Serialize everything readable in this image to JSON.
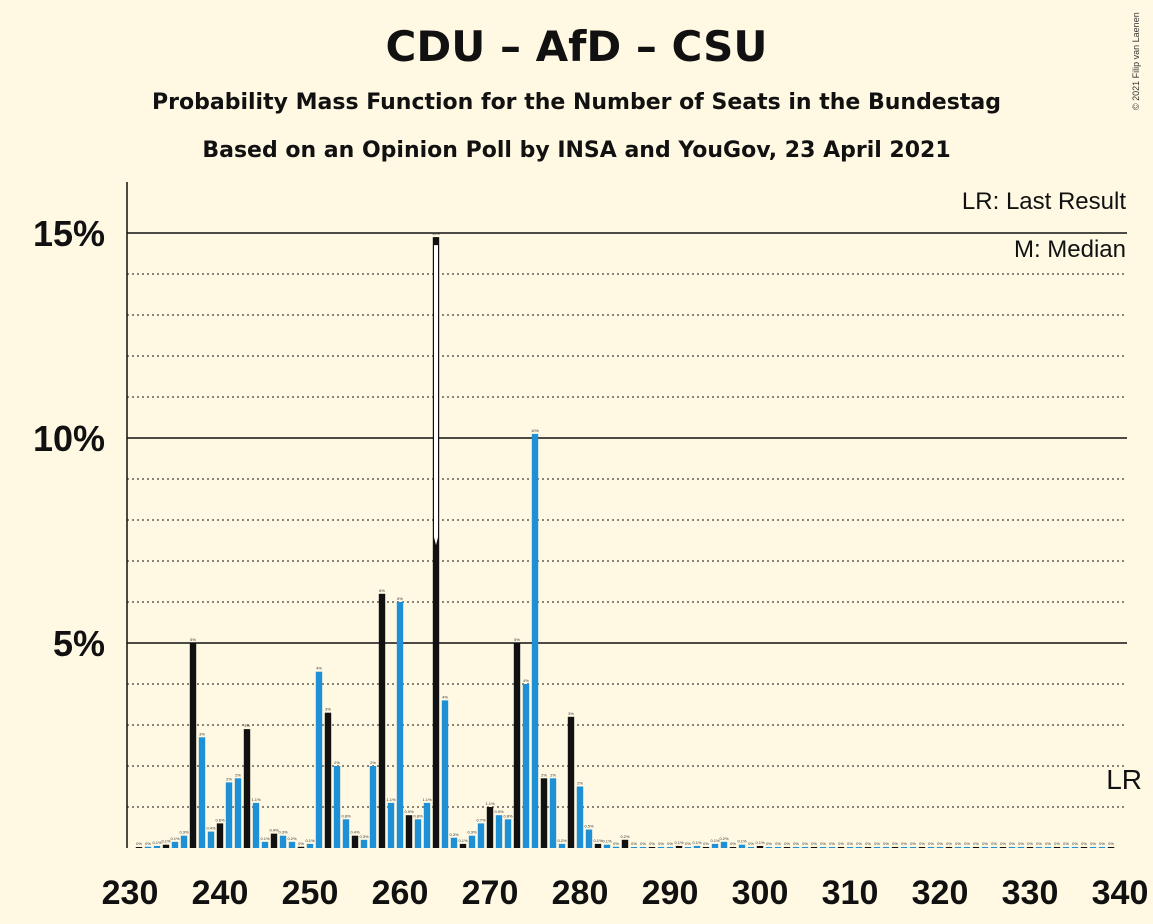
{
  "title": "CDU – AfD – CSU",
  "subtitle": "Probability Mass Function for the Number of Seats in the Bundestag",
  "subtitle2": "Based on an Opinion Poll by INSA and YouGov, 23 April 2021",
  "copyright": "© 2021 Filip van Laenen",
  "legend": {
    "lr": "LR: Last Result",
    "m": "M: Median"
  },
  "lr_marker": "LR",
  "colors": {
    "background": "#FFF8E2",
    "bar_black": "#111111",
    "bar_blue": "#1E90D6"
  },
  "chart_data": {
    "type": "bar",
    "x_axis": {
      "min": 230,
      "max": 340,
      "ticks": [
        230,
        240,
        250,
        260,
        270,
        280,
        290,
        300,
        310,
        320,
        330,
        340
      ]
    },
    "y_axis": {
      "min": 0,
      "max": 16,
      "ticks": [
        5,
        10,
        15
      ],
      "tick_labels": [
        "5%",
        "10%",
        "15%"
      ],
      "unit": "%"
    },
    "grid": "dotted each 1%, solid at 5/10/15",
    "median": 264,
    "last_result": 340,
    "bars": [
      {
        "x": 231,
        "v": 0.02,
        "label": "0%"
      },
      {
        "x": 232,
        "v": 0.03,
        "label": "0%"
      },
      {
        "x": 233,
        "v": 0.05,
        "label": "0.1%"
      },
      {
        "x": 234,
        "v": 0.08,
        "label": "0.1%"
      },
      {
        "x": 235,
        "v": 0.15,
        "label": "0.1%"
      },
      {
        "x": 236,
        "v": 0.3,
        "label": "0.3%"
      },
      {
        "x": 237,
        "v": 5.0,
        "label": "5%"
      },
      {
        "x": 238,
        "v": 2.7,
        "label": "3%"
      },
      {
        "x": 239,
        "v": 0.4,
        "label": "0.4%"
      },
      {
        "x": 240,
        "v": 0.6,
        "label": "0.6%"
      },
      {
        "x": 241,
        "v": 1.6,
        "label": "2%"
      },
      {
        "x": 242,
        "v": 1.7,
        "label": "2%"
      },
      {
        "x": 243,
        "v": 2.9,
        "label": "3%"
      },
      {
        "x": 244,
        "v": 1.1,
        "label": "1.1%"
      },
      {
        "x": 245,
        "v": 0.15,
        "label": "0.1%"
      },
      {
        "x": 246,
        "v": 0.35,
        "label": "0.4%"
      },
      {
        "x": 247,
        "v": 0.3,
        "label": "0.3%"
      },
      {
        "x": 248,
        "v": 0.15,
        "label": "0.2%"
      },
      {
        "x": 249,
        "v": 0.03,
        "label": "0%"
      },
      {
        "x": 250,
        "v": 0.1,
        "label": "0.1%"
      },
      {
        "x": 251,
        "v": 4.3,
        "label": "4%"
      },
      {
        "x": 252,
        "v": 3.3,
        "label": "3%"
      },
      {
        "x": 253,
        "v": 2.0,
        "label": "2%"
      },
      {
        "x": 254,
        "v": 0.7,
        "label": "0.8%"
      },
      {
        "x": 255,
        "v": 0.3,
        "label": "0.4%"
      },
      {
        "x": 256,
        "v": 0.2,
        "label": "0.3%"
      },
      {
        "x": 257,
        "v": 2.0,
        "label": "2%"
      },
      {
        "x": 258,
        "v": 6.2,
        "label": "6%"
      },
      {
        "x": 259,
        "v": 1.1,
        "label": "1.1%"
      },
      {
        "x": 260,
        "v": 6.0,
        "label": "6%"
      },
      {
        "x": 261,
        "v": 0.8,
        "label": "0.9%"
      },
      {
        "x": 262,
        "v": 0.7,
        "label": "0.8%"
      },
      {
        "x": 263,
        "v": 1.1,
        "label": "1.1%"
      },
      {
        "x": 264,
        "v": 14.9,
        "label": "15%"
      },
      {
        "x": 265,
        "v": 3.6,
        "label": "4%"
      },
      {
        "x": 266,
        "v": 0.25,
        "label": "0.3%"
      },
      {
        "x": 267,
        "v": 0.1,
        "label": "0.1%"
      },
      {
        "x": 268,
        "v": 0.3,
        "label": "0.3%"
      },
      {
        "x": 269,
        "v": 0.6,
        "label": "0.7%"
      },
      {
        "x": 270,
        "v": 1.0,
        "label": "1.1%"
      },
      {
        "x": 271,
        "v": 0.8,
        "label": "0.9%"
      },
      {
        "x": 272,
        "v": 0.7,
        "label": "0.8%"
      },
      {
        "x": 273,
        "v": 5.0,
        "label": "5%"
      },
      {
        "x": 274,
        "v": 4.0,
        "label": "4%"
      },
      {
        "x": 275,
        "v": 10.1,
        "label": "10%"
      },
      {
        "x": 276,
        "v": 1.7,
        "label": "2%"
      },
      {
        "x": 277,
        "v": 1.7,
        "label": "2%"
      },
      {
        "x": 278,
        "v": 0.1,
        "label": "0.2%"
      },
      {
        "x": 279,
        "v": 3.2,
        "label": "3%"
      },
      {
        "x": 280,
        "v": 1.5,
        "label": "2%"
      },
      {
        "x": 281,
        "v": 0.45,
        "label": "0.5%"
      },
      {
        "x": 282,
        "v": 0.1,
        "label": "0.1%"
      },
      {
        "x": 283,
        "v": 0.08,
        "label": "0.1%"
      },
      {
        "x": 284,
        "v": 0.03,
        "label": "0%"
      },
      {
        "x": 285,
        "v": 0.2,
        "label": "0.2%"
      },
      {
        "x": 286,
        "v": 0.02,
        "label": "0%"
      },
      {
        "x": 287,
        "v": 0.01,
        "label": "0%"
      },
      {
        "x": 288,
        "v": 0.01,
        "label": "0%"
      },
      {
        "x": 289,
        "v": 0.01,
        "label": "0%"
      },
      {
        "x": 290,
        "v": 0.01,
        "label": "0%"
      },
      {
        "x": 291,
        "v": 0.05,
        "label": "0.1%"
      },
      {
        "x": 292,
        "v": 0.02,
        "label": "0%"
      },
      {
        "x": 293,
        "v": 0.05,
        "label": "0.1%"
      },
      {
        "x": 294,
        "v": 0.02,
        "label": "0%"
      },
      {
        "x": 295,
        "v": 0.1,
        "label": "0.1%"
      },
      {
        "x": 296,
        "v": 0.15,
        "label": "0.2%"
      },
      {
        "x": 297,
        "v": 0.02,
        "label": "0%"
      },
      {
        "x": 298,
        "v": 0.08,
        "label": "0.1%"
      },
      {
        "x": 299,
        "v": 0.01,
        "label": "0%"
      },
      {
        "x": 300,
        "v": 0.05,
        "label": "0.1%"
      },
      {
        "x": 301,
        "v": 0.01,
        "label": "0%"
      },
      {
        "x": 302,
        "v": 0.01,
        "label": "0%"
      },
      {
        "x": 303,
        "v": 0.01,
        "label": "0%"
      },
      {
        "x": 304,
        "v": 0.01,
        "label": "0%"
      },
      {
        "x": 305,
        "v": 0.01,
        "label": "0%"
      },
      {
        "x": 306,
        "v": 0.01,
        "label": "0%"
      },
      {
        "x": 307,
        "v": 0.01,
        "label": "0%"
      },
      {
        "x": 308,
        "v": 0.01,
        "label": "0%"
      },
      {
        "x": 309,
        "v": 0.01,
        "label": "0%"
      },
      {
        "x": 310,
        "v": 0.01,
        "label": "0%"
      },
      {
        "x": 311,
        "v": 0.01,
        "label": "0%"
      },
      {
        "x": 312,
        "v": 0.01,
        "label": "0%"
      },
      {
        "x": 313,
        "v": 0.01,
        "label": "0%"
      },
      {
        "x": 314,
        "v": 0.01,
        "label": "0%"
      },
      {
        "x": 315,
        "v": 0.01,
        "label": "0%"
      },
      {
        "x": 316,
        "v": 0.01,
        "label": "0%"
      },
      {
        "x": 317,
        "v": 0.01,
        "label": "0%"
      },
      {
        "x": 318,
        "v": 0.01,
        "label": "0%"
      },
      {
        "x": 319,
        "v": 0.01,
        "label": "0%"
      },
      {
        "x": 320,
        "v": 0.01,
        "label": "0%"
      },
      {
        "x": 321,
        "v": 0.01,
        "label": "0%"
      },
      {
        "x": 322,
        "v": 0.01,
        "label": "0%"
      },
      {
        "x": 323,
        "v": 0.01,
        "label": "0%"
      },
      {
        "x": 324,
        "v": 0.01,
        "label": "0%"
      },
      {
        "x": 325,
        "v": 0.01,
        "label": "0%"
      },
      {
        "x": 326,
        "v": 0.01,
        "label": "0%"
      },
      {
        "x": 327,
        "v": 0.01,
        "label": "0%"
      },
      {
        "x": 328,
        "v": 0.01,
        "label": "0%"
      },
      {
        "x": 329,
        "v": 0.01,
        "label": "0%"
      },
      {
        "x": 330,
        "v": 0.01,
        "label": "0%"
      },
      {
        "x": 331,
        "v": 0.01,
        "label": "0%"
      },
      {
        "x": 332,
        "v": 0.01,
        "label": "0%"
      },
      {
        "x": 333,
        "v": 0.01,
        "label": "0%"
      },
      {
        "x": 334,
        "v": 0.01,
        "label": "0%"
      },
      {
        "x": 335,
        "v": 0.01,
        "label": "0%"
      },
      {
        "x": 336,
        "v": 0.01,
        "label": "0%"
      },
      {
        "x": 337,
        "v": 0.01,
        "label": "0%"
      },
      {
        "x": 338,
        "v": 0.01,
        "label": "0%"
      },
      {
        "x": 339,
        "v": 0.01,
        "label": "0%"
      }
    ]
  }
}
